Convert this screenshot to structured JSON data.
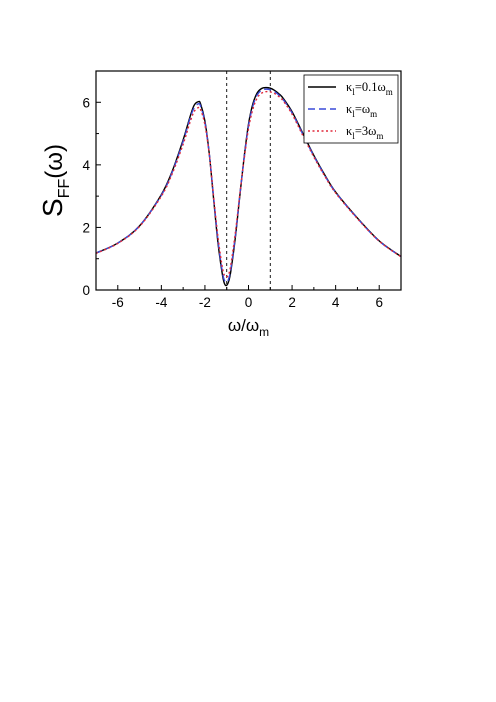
{
  "chart_data": {
    "type": "line",
    "title": "",
    "xlabel": {
      "main": "ω/ω",
      "sub": "m"
    },
    "ylabel": {
      "main": "S",
      "sub": "FF",
      "suffix": "(ω)"
    },
    "xlim": [
      -7,
      7
    ],
    "ylim": [
      0,
      7
    ],
    "xticks": [
      -6,
      -4,
      -2,
      0,
      2,
      4,
      6
    ],
    "yticks": [
      0,
      2,
      4,
      6
    ],
    "reference_lines_x": [
      -1,
      1
    ],
    "grid": false,
    "legend_position": "top-right",
    "x": [
      -7,
      -6,
      -5,
      -4,
      -3.5,
      -3,
      -2.7,
      -2.5,
      -2.3,
      -2.2,
      -2.0,
      -1.8,
      -1.6,
      -1.4,
      -1.2,
      -1.1,
      -1.0,
      -0.9,
      -0.8,
      -0.6,
      -0.4,
      -0.2,
      0,
      0.2,
      0.4,
      0.6,
      0.8,
      1.0,
      1.2,
      1.4,
      1.6,
      2.0,
      2.5,
      3.0,
      3.5,
      4.0,
      5.0,
      6.0,
      7.0
    ],
    "series": [
      {
        "name": "κ_l=0.1ω_m",
        "legend": {
          "kappa": "κ",
          "sub1": "l",
          "eq": "=0.1ω",
          "sub2": "m"
        },
        "color": "#000000",
        "dash": "solid",
        "values": [
          1.18,
          1.5,
          2.05,
          3.05,
          3.8,
          4.8,
          5.5,
          5.9,
          6.02,
          5.95,
          5.4,
          4.35,
          2.9,
          1.5,
          0.5,
          0.2,
          0.15,
          0.3,
          0.65,
          1.7,
          3.0,
          4.25,
          5.3,
          5.95,
          6.3,
          6.44,
          6.47,
          6.45,
          6.38,
          6.27,
          6.12,
          5.7,
          5.0,
          4.3,
          3.68,
          3.13,
          2.3,
          1.57,
          1.07
        ]
      },
      {
        "name": "κ_l=ω_m",
        "legend": {
          "kappa": "κ",
          "sub1": "l",
          "eq": "=ω",
          "sub2": "m"
        },
        "color": "#3a4ad8",
        "dash": "dashed",
        "values": [
          1.18,
          1.5,
          2.05,
          3.03,
          3.77,
          4.75,
          5.45,
          5.82,
          5.95,
          5.88,
          5.35,
          4.35,
          2.95,
          1.58,
          0.58,
          0.3,
          0.25,
          0.38,
          0.72,
          1.75,
          3.02,
          4.22,
          5.25,
          5.88,
          6.24,
          6.38,
          6.42,
          6.4,
          6.34,
          6.23,
          6.08,
          5.66,
          4.97,
          4.28,
          3.66,
          3.12,
          2.29,
          1.56,
          1.07
        ]
      },
      {
        "name": "κ_l=3ω_m",
        "legend": {
          "kappa": "κ",
          "sub1": "l",
          "eq": "=3ω",
          "sub2": "m"
        },
        "color": "#e0283a",
        "dash": "dotted",
        "values": [
          1.17,
          1.49,
          2.03,
          3.0,
          3.72,
          4.66,
          5.33,
          5.7,
          5.83,
          5.77,
          5.28,
          4.33,
          2.98,
          1.68,
          0.72,
          0.46,
          0.42,
          0.52,
          0.85,
          1.85,
          3.05,
          4.18,
          5.16,
          5.78,
          6.14,
          6.29,
          6.34,
          6.33,
          6.28,
          6.18,
          6.04,
          5.62,
          4.93,
          4.25,
          3.64,
          3.1,
          2.28,
          1.56,
          1.06
        ]
      }
    ]
  }
}
